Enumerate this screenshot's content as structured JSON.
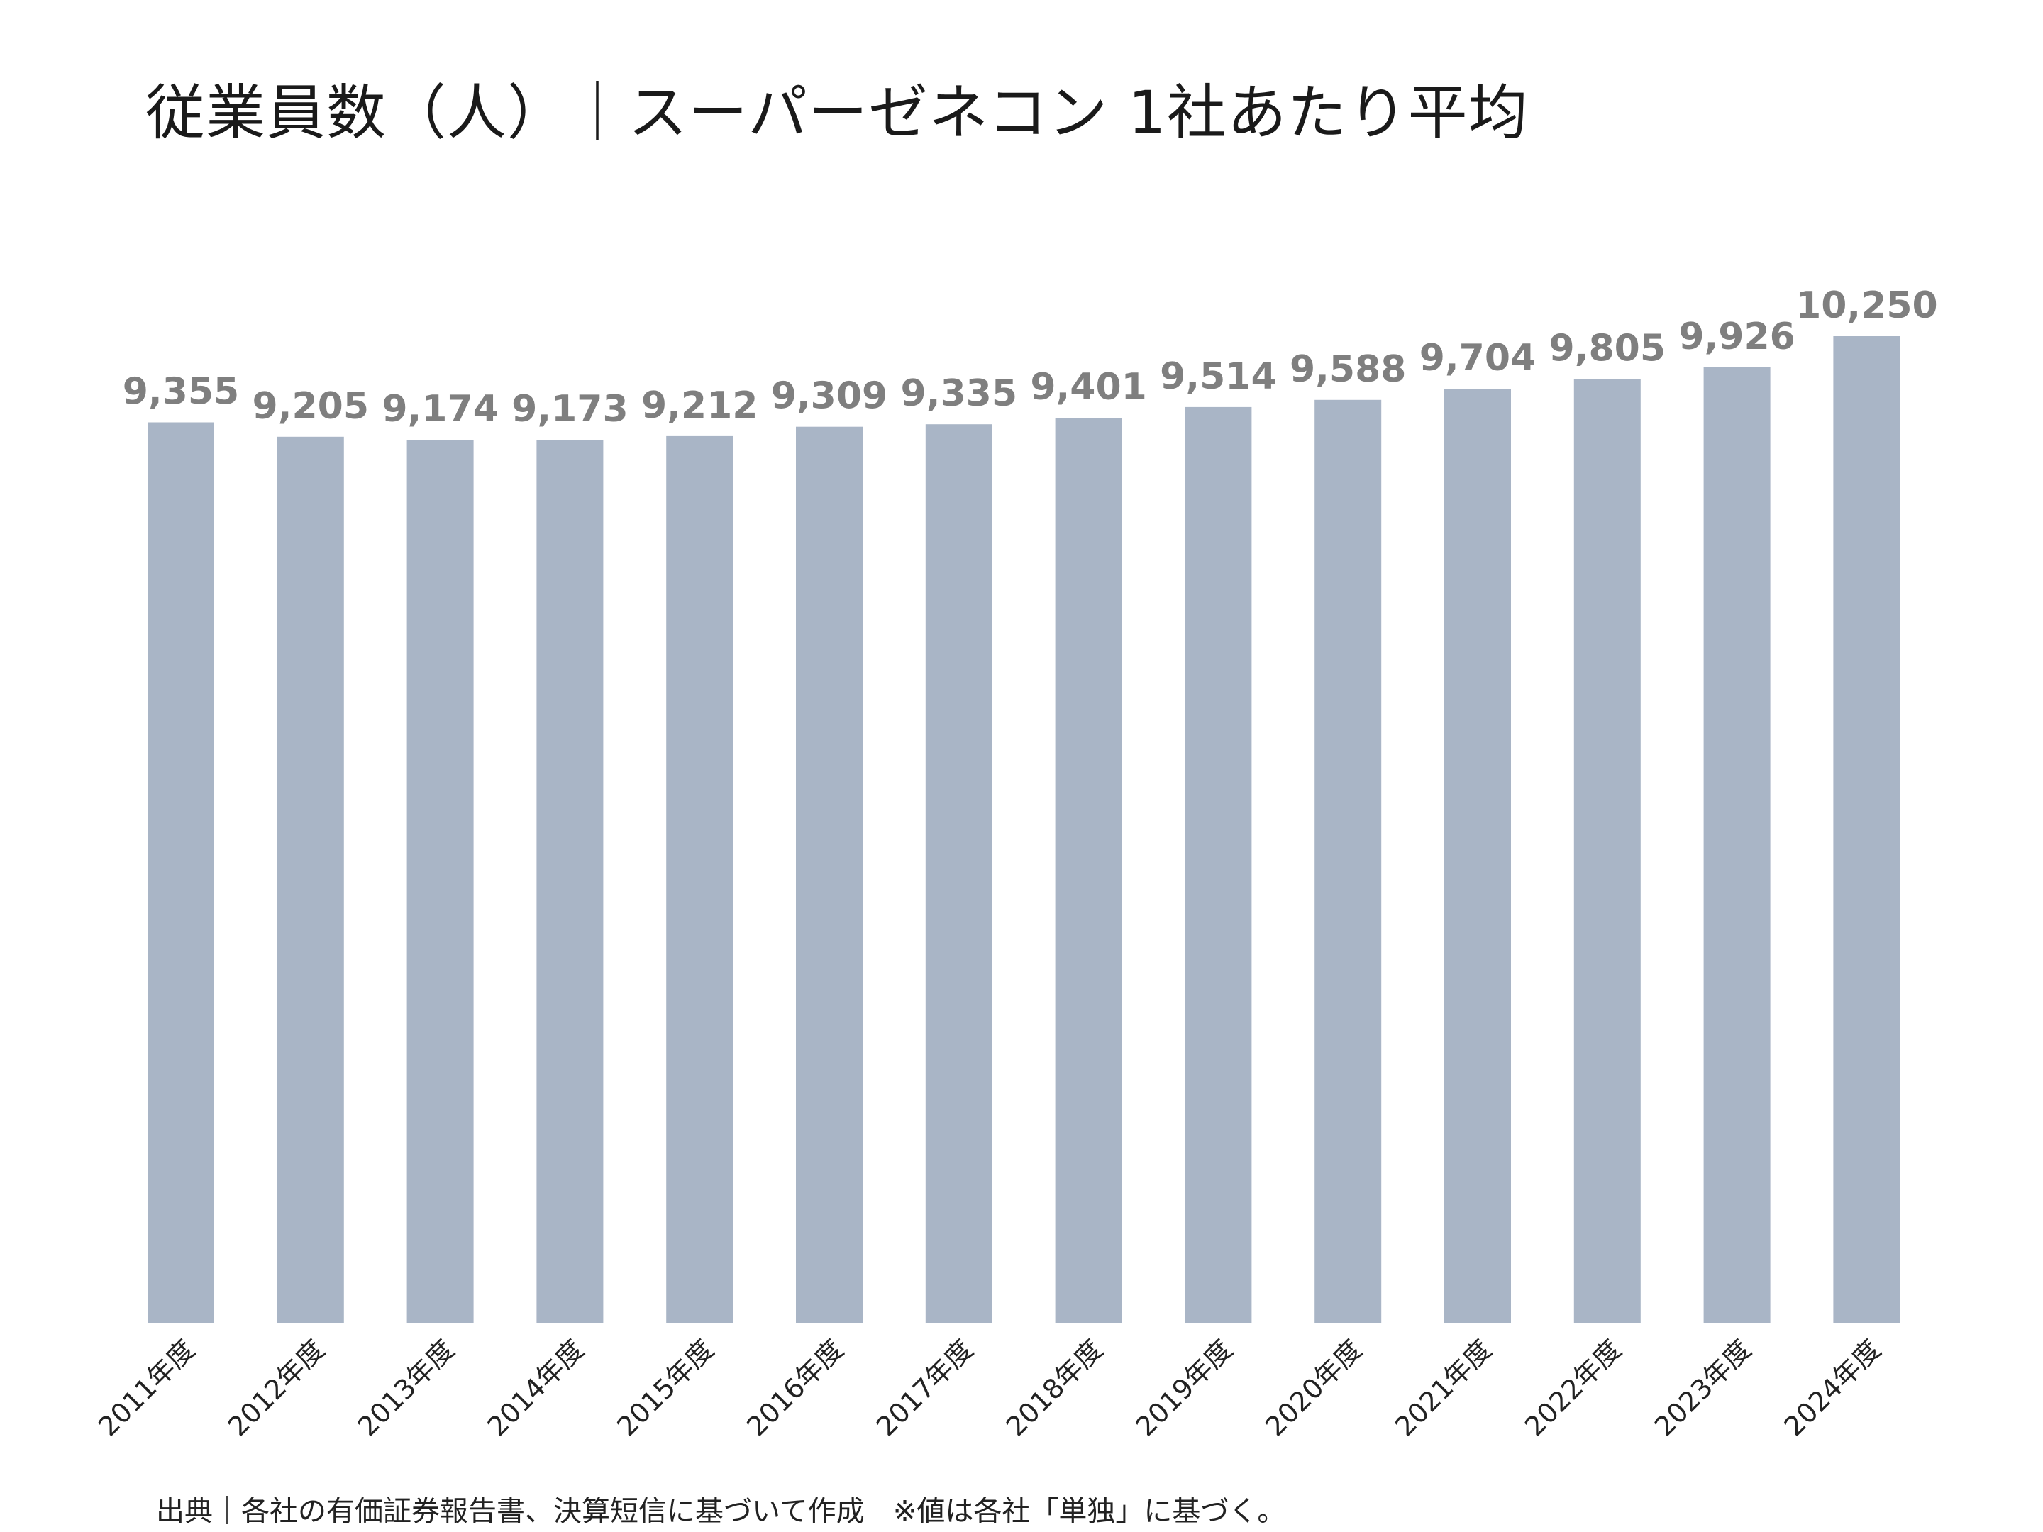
{
  "chart_data": {
    "type": "bar",
    "title": "従業員数（人）｜スーパーゼネコン 1社あたり平均",
    "categories": [
      "2011年度",
      "2012年度",
      "2013年度",
      "2014年度",
      "2015年度",
      "2016年度",
      "2017年度",
      "2018年度",
      "2019年度",
      "2020年度",
      "2021年度",
      "2022年度",
      "2023年度",
      "2024年度"
    ],
    "values": [
      9355,
      9205,
      9174,
      9173,
      9212,
      9309,
      9335,
      9401,
      9514,
      9588,
      9704,
      9805,
      9926,
      10250
    ],
    "data_labels": [
      "9,355",
      "9,205",
      "9,174",
      "9,173",
      "9,212",
      "9,309",
      "9,335",
      "9,401",
      "9,514",
      "9,588",
      "9,704",
      "9,805",
      "9,926",
      "10,250"
    ],
    "ylim": [
      0,
      10250
    ],
    "grid": false,
    "bar_color": "#a9b5c6",
    "label_color": "#7f7f7f",
    "footnote": "出典｜各社の有価証券報告書、決算短信に基づいて作成　※値は各社「単独」に基づく。"
  }
}
